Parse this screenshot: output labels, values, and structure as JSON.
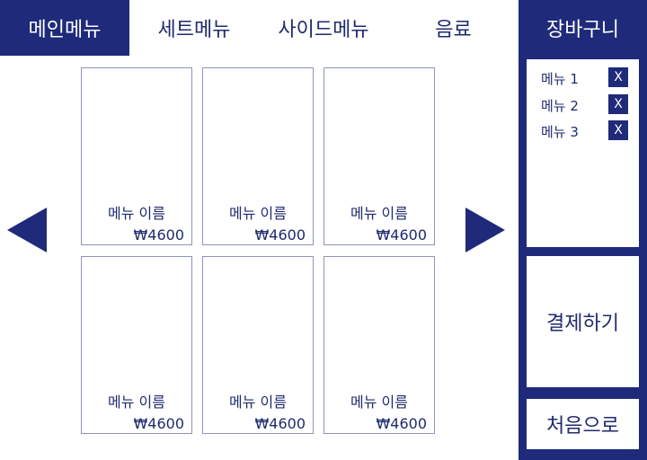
{
  "tabs": [
    {
      "label": "메인메뉴",
      "active": true
    },
    {
      "label": "세트메뉴",
      "active": false
    },
    {
      "label": "사이드메뉴",
      "active": false
    },
    {
      "label": "음료",
      "active": false
    }
  ],
  "menu_items": [
    {
      "name": "메뉴 이름",
      "price": "₩4600"
    },
    {
      "name": "메뉴 이름",
      "price": "₩4600"
    },
    {
      "name": "메뉴 이름",
      "price": "₩4600"
    },
    {
      "name": "메뉴 이름",
      "price": "₩4600"
    },
    {
      "name": "메뉴 이름",
      "price": "₩4600"
    },
    {
      "name": "메뉴 이름",
      "price": "₩4600"
    }
  ],
  "cart": {
    "title": "장바구니",
    "items": [
      {
        "label": "메뉴 1",
        "remove": "X"
      },
      {
        "label": "메뉴 2",
        "remove": "X"
      },
      {
        "label": "메뉴 3",
        "remove": "X"
      }
    ],
    "pay_label": "결제하기",
    "home_label": "처음으로"
  },
  "colors": {
    "brand": "#1f2a7a",
    "border": "#8e93c0",
    "background": "#ffffff"
  },
  "icons": {
    "prev": "triangle-left-icon",
    "next": "triangle-right-icon"
  }
}
